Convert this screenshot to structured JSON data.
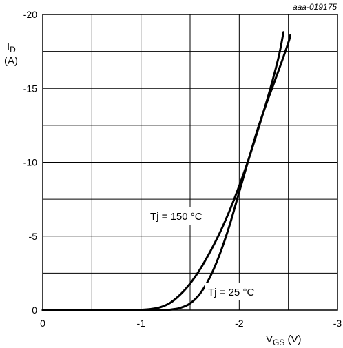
{
  "chart_data": {
    "type": "line",
    "reference": "aaa-019175",
    "ylabel_main": "I",
    "ylabel_sub": "D",
    "ylabel_unit": "(A)",
    "xlabel_main": "V",
    "xlabel_sub": "GS",
    "xlabel_unit": " (V)",
    "xlim": [
      0,
      -3
    ],
    "ylim": [
      0,
      -20
    ],
    "x_ticks": [
      0,
      -1,
      -2,
      -3
    ],
    "x_tick_labels": [
      "0",
      "-1",
      "-2",
      "-3"
    ],
    "y_ticks": [
      0,
      -5,
      -10,
      -15,
      -20
    ],
    "y_tick_labels": [
      "0",
      "-5",
      "-10",
      "-15",
      "-20"
    ],
    "x_grid_step": -0.5,
    "y_grid_step": -2.5,
    "grid": true,
    "series": [
      {
        "name": "Tj = 150 °C",
        "x": [
          0,
          -0.6,
          -0.9,
          -1.0,
          -1.1,
          -1.2,
          -1.3,
          -1.4,
          -1.5,
          -1.6,
          -1.7,
          -1.8,
          -1.9,
          -2.0,
          -2.1,
          -2.2,
          -2.3,
          -2.4,
          -2.45
        ],
        "y": [
          0,
          0,
          0,
          -0.02,
          -0.07,
          -0.2,
          -0.5,
          -1.05,
          -1.8,
          -2.75,
          -3.9,
          -5.2,
          -6.7,
          -8.4,
          -10.3,
          -12.4,
          -14.6,
          -17.1,
          -18.8
        ]
      },
      {
        "name": "Tj = 25 °C",
        "x": [
          0,
          -1.0,
          -1.2,
          -1.3,
          -1.4,
          -1.5,
          -1.6,
          -1.7,
          -1.8,
          -1.9,
          -2.0,
          -2.1,
          -2.2,
          -2.3,
          -2.4,
          -2.5,
          -2.52
        ],
        "y": [
          0,
          0,
          0,
          -0.03,
          -0.15,
          -0.45,
          -1.1,
          -2.2,
          -3.75,
          -5.7,
          -8.0,
          -10.3,
          -12.5,
          -14.4,
          -16.2,
          -18.1,
          -18.6
        ]
      }
    ],
    "labels": [
      "Tj = 150 °C",
      "Tj = 25 °C"
    ]
  }
}
